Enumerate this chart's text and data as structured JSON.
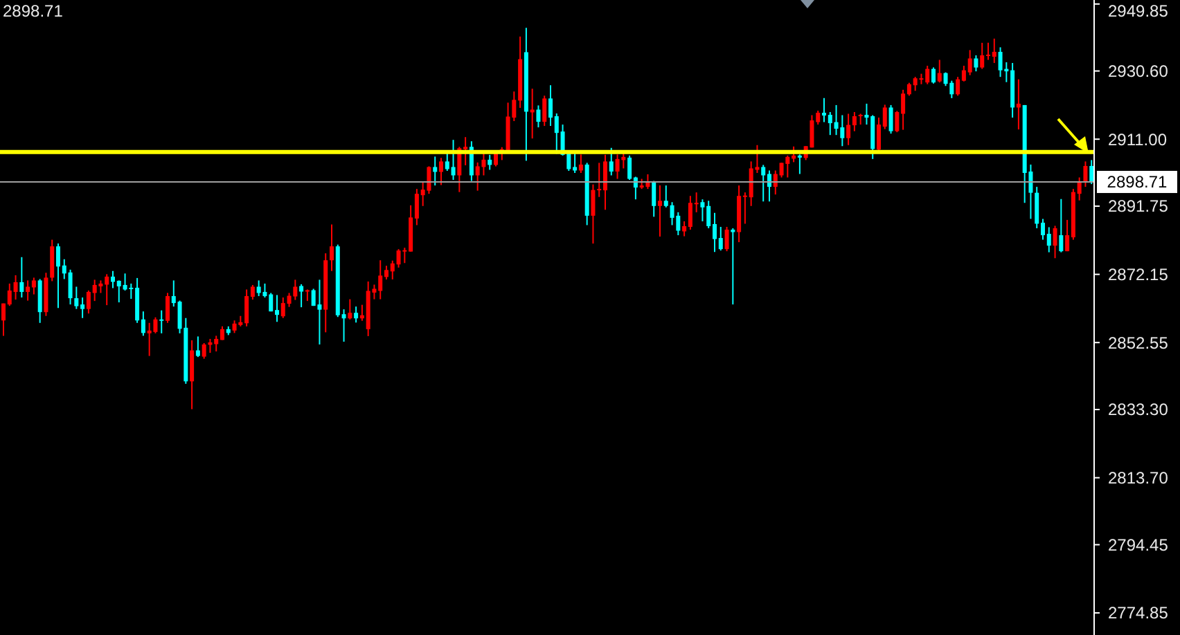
{
  "chart_data": {
    "type": "candlestick",
    "categories": [
      null,
      null,
      null,
      null,
      null,
      null,
      null,
      null,
      null,
      null,
      null,
      null,
      null,
      null,
      null,
      null,
      null,
      null,
      null,
      null,
      null,
      null,
      null,
      null,
      null,
      null,
      null,
      null,
      null,
      null,
      null,
      null,
      null,
      null,
      null,
      null,
      null,
      null,
      null,
      null,
      null,
      null,
      null,
      null,
      null,
      null,
      null,
      null,
      null,
      null,
      null,
      null,
      null,
      null,
      null,
      null,
      null,
      null,
      null,
      null,
      null,
      null,
      null,
      null,
      null,
      null,
      null,
      null,
      null,
      null,
      null,
      null,
      null,
      null,
      null,
      null,
      null,
      null,
      null,
      null,
      null,
      null,
      null,
      null,
      null,
      null,
      null,
      null,
      null,
      null,
      null,
      null,
      null,
      null,
      null,
      null,
      null,
      null,
      null,
      null,
      null,
      null,
      null,
      null,
      null,
      null,
      null,
      null,
      null,
      null,
      null,
      null,
      null,
      null,
      null,
      null,
      null,
      null,
      null,
      null,
      null,
      null,
      null,
      null,
      null,
      null,
      null,
      null,
      null,
      null,
      null,
      null,
      null,
      null,
      null,
      null,
      null,
      null,
      null,
      null,
      null,
      null,
      null,
      null,
      null,
      null,
      null,
      null,
      null,
      null,
      null,
      null,
      null,
      null,
      null,
      null,
      null,
      null,
      null,
      null,
      null,
      null,
      null,
      null,
      null,
      null,
      null,
      null,
      null,
      null,
      null,
      null,
      null,
      null,
      null,
      null,
      null,
      null,
      null,
      null
    ],
    "ohlc": [
      [
        2858.9,
        2863.8,
        2854.5,
        2863.8
      ],
      [
        2863.5,
        2869.5,
        2863.1,
        2867.5
      ],
      [
        2867.1,
        2871.9,
        2864.9,
        2869.9
      ],
      [
        2869.9,
        2877.1,
        2865.5,
        2867.1
      ],
      [
        2867.1,
        2870.4,
        2864.6,
        2868.6
      ],
      [
        2868.4,
        2871.2,
        2866.4,
        2870.4
      ],
      [
        2870.4,
        2870.8,
        2858.2,
        2861.3
      ],
      [
        2861.3,
        2872.6,
        2860.2,
        2871.2
      ],
      [
        2871.2,
        2882.1,
        2870.2,
        2880.2
      ],
      [
        2880.2,
        2881.0,
        2862.5,
        2874.4
      ],
      [
        2874.7,
        2876.5,
        2870.8,
        2872.4
      ],
      [
        2872.7,
        2873.5,
        2863.5,
        2865.3
      ],
      [
        2865.3,
        2868.6,
        2862.2,
        2863.0
      ],
      [
        2863.5,
        2865.5,
        2859.6,
        2862.2
      ],
      [
        2862.2,
        2867.5,
        2860.9,
        2867.1
      ],
      [
        2866.8,
        2870.6,
        2864.5,
        2869.1
      ],
      [
        2868.7,
        2870.4,
        2866.8,
        2869.5
      ],
      [
        2869.2,
        2872.2,
        2863.3,
        2871.5
      ],
      [
        2871.5,
        2873.1,
        2868.2,
        2870.0
      ],
      [
        2870.3,
        2870.4,
        2864.1,
        2868.7
      ],
      [
        2869.1,
        2872.4,
        2867.5,
        2867.8
      ],
      [
        2868.3,
        2869.5,
        2865.1,
        2868.0
      ],
      [
        2868.3,
        2871.1,
        2858.2,
        2858.9
      ],
      [
        2859.2,
        2861.5,
        2854.5,
        2855.3
      ],
      [
        2855.2,
        2858.2,
        2848.7,
        2856.0
      ],
      [
        2855.6,
        2859.8,
        2855.2,
        2859.2
      ],
      [
        2859.2,
        2861.8,
        2855.2,
        2858.8
      ],
      [
        2858.8,
        2866.8,
        2858.2,
        2865.9
      ],
      [
        2865.9,
        2870.4,
        2862.9,
        2863.9
      ],
      [
        2864.3,
        2864.6,
        2855.2,
        2856.5
      ],
      [
        2856.8,
        2859.6,
        2840.7,
        2841.4
      ],
      [
        2841.4,
        2853.2,
        2833.4,
        2850.3
      ],
      [
        2850.3,
        2854.3,
        2848.4,
        2848.7
      ],
      [
        2848.5,
        2852.4,
        2847.9,
        2852.0
      ],
      [
        2851.9,
        2853.6,
        2849.6,
        2852.6
      ],
      [
        2852.1,
        2854.5,
        2850.0,
        2853.6
      ],
      [
        2853.3,
        2857.2,
        2853.3,
        2856.4
      ],
      [
        2856.4,
        2857.2,
        2854.7,
        2855.3
      ],
      [
        2856.0,
        2858.9,
        2855.3,
        2858.0
      ],
      [
        2857.6,
        2860.2,
        2857.2,
        2858.4
      ],
      [
        2858.1,
        2867.8,
        2857.2,
        2865.9
      ],
      [
        2865.7,
        2869.1,
        2864.9,
        2868.6
      ],
      [
        2868.6,
        2870.4,
        2865.9,
        2866.8
      ],
      [
        2867.1,
        2869.5,
        2865.5,
        2865.9
      ],
      [
        2866.4,
        2866.8,
        2861.5,
        2861.5
      ],
      [
        2861.9,
        2866.2,
        2858.5,
        2860.5
      ],
      [
        2860.1,
        2865.5,
        2859.6,
        2863.9
      ],
      [
        2863.7,
        2866.8,
        2862.8,
        2866.0
      ],
      [
        2865.8,
        2870.6,
        2864.8,
        2868.6
      ],
      [
        2868.8,
        2869.3,
        2862.7,
        2867.2
      ],
      [
        2867.2,
        2867.8,
        2864.5,
        2867.6
      ],
      [
        2867.6,
        2868.0,
        2863.1,
        2863.1
      ],
      [
        2863.5,
        2870.6,
        2852.0,
        2862.0
      ],
      [
        2862.0,
        2878.2,
        2855.5,
        2876.2
      ],
      [
        2876.2,
        2886.5,
        2873.1,
        2880.2
      ],
      [
        2880.2,
        2880.7,
        2859.9,
        2860.4
      ],
      [
        2860.7,
        2862.1,
        2852.8,
        2859.5
      ],
      [
        2859.5,
        2865.0,
        2859.2,
        2861.1
      ],
      [
        2861.1,
        2862.9,
        2858.3,
        2859.5
      ],
      [
        2859.5,
        2863.4,
        2858.8,
        2860.4
      ],
      [
        2856.4,
        2870.1,
        2854.4,
        2867.4
      ],
      [
        2866.9,
        2869.2,
        2865.0,
        2868.0
      ],
      [
        2867.4,
        2876.2,
        2865.0,
        2871.8
      ],
      [
        2871.4,
        2874.6,
        2870.7,
        2873.4
      ],
      [
        2873.0,
        2876.1,
        2870.7,
        2875.3
      ],
      [
        2875.0,
        2879.4,
        2874.1,
        2879.0
      ],
      [
        2878.7,
        2879.8,
        2875.4,
        2879.1
      ],
      [
        2878.7,
        2892.0,
        2878.7,
        2888.5
      ],
      [
        2888.2,
        2896.7,
        2886.3,
        2895.3
      ],
      [
        2894.9,
        2898.9,
        2891.8,
        2896.5
      ],
      [
        2896.2,
        2903.2,
        2895.3,
        2903.0
      ],
      [
        2903.0,
        2906.0,
        2897.7,
        2901.6
      ],
      [
        2901.6,
        2905.6,
        2897.8,
        2904.6
      ],
      [
        2904.6,
        2906.9,
        2901.9,
        2902.4
      ],
      [
        2903.0,
        2910.8,
        2899.3,
        2900.6
      ],
      [
        2900.6,
        2908.8,
        2895.8,
        2908.4
      ],
      [
        2908.1,
        2911.6,
        2903.5,
        2908.8
      ],
      [
        2908.8,
        2910.4,
        2899.0,
        2900.6
      ],
      [
        2900.6,
        2904.3,
        2896.2,
        2903.2
      ],
      [
        2903.0,
        2906.9,
        2900.6,
        2905.1
      ],
      [
        2905.1,
        2906.5,
        2902.2,
        2903.6
      ],
      [
        2903.6,
        2907.7,
        2903.2,
        2907.2
      ],
      [
        2907.0,
        2908.7,
        2905.0,
        2908.1
      ],
      [
        2907.2,
        2921.5,
        2907.2,
        2917.5
      ],
      [
        2917.2,
        2924.7,
        2916.2,
        2922.3
      ],
      [
        2922.1,
        2940.5,
        2920.0,
        2934.0
      ],
      [
        2936.0,
        2943.0,
        2904.8,
        2918.9
      ],
      [
        2918.7,
        2925.5,
        2911.2,
        2919.5
      ],
      [
        2919.5,
        2920.7,
        2914.4,
        2916.0
      ],
      [
        2916.0,
        2923.5,
        2914.8,
        2922.7
      ],
      [
        2922.7,
        2926.5,
        2914.8,
        2917.2
      ],
      [
        2917.6,
        2918.4,
        2906.8,
        2912.8
      ],
      [
        2913.2,
        2915.2,
        2906.3,
        2906.5
      ],
      [
        2907.2,
        2907.2,
        2901.9,
        2902.4
      ],
      [
        2903.0,
        2906.9,
        2901.3,
        2902.0
      ],
      [
        2902.0,
        2906.6,
        2901.3,
        2903.7
      ],
      [
        2903.7,
        2904.2,
        2886.3,
        2889.0
      ],
      [
        2889.0,
        2898.0,
        2881.0,
        2896.4
      ],
      [
        2896.3,
        2904.2,
        2894.4,
        2896.7
      ],
      [
        2896.3,
        2906.5,
        2890.7,
        2904.6
      ],
      [
        2904.6,
        2908.5,
        2900.6,
        2901.7
      ],
      [
        2901.7,
        2906.6,
        2899.6,
        2905.3
      ],
      [
        2905.0,
        2906.9,
        2902.6,
        2905.9
      ],
      [
        2905.7,
        2906.3,
        2899.3,
        2899.6
      ],
      [
        2900.0,
        2900.2,
        2893.7,
        2897.1
      ],
      [
        2897.1,
        2899.6,
        2896.7,
        2897.7
      ],
      [
        2897.3,
        2900.9,
        2896.7,
        2898.6
      ],
      [
        2898.6,
        2899.0,
        2888.7,
        2891.8
      ],
      [
        2891.8,
        2897.7,
        2883.0,
        2893.3
      ],
      [
        2893.3,
        2897.7,
        2891.4,
        2891.8
      ],
      [
        2892.0,
        2892.9,
        2886.3,
        2888.4
      ],
      [
        2889.0,
        2890.0,
        2883.4,
        2884.7
      ],
      [
        2884.5,
        2887.4,
        2883.1,
        2886.0
      ],
      [
        2885.8,
        2894.7,
        2885.0,
        2892.7
      ],
      [
        2892.3,
        2895.7,
        2890.0,
        2892.7
      ],
      [
        2892.9,
        2893.7,
        2887.4,
        2891.4
      ],
      [
        2891.8,
        2893.3,
        2885.4,
        2886.0
      ],
      [
        2886.6,
        2889.8,
        2878.6,
        2882.3
      ],
      [
        2882.6,
        2885.8,
        2879.0,
        2879.4
      ],
      [
        2879.4,
        2885.8,
        2878.8,
        2885.0
      ],
      [
        2885.0,
        2885.4,
        2863.5,
        2884.3
      ],
      [
        2884.3,
        2897.7,
        2881.4,
        2894.7
      ],
      [
        2894.4,
        2895.7,
        2886.7,
        2894.8
      ],
      [
        2894.3,
        2904.6,
        2891.8,
        2902.6
      ],
      [
        2902.2,
        2909.3,
        2901.3,
        2903.0
      ],
      [
        2903.0,
        2903.6,
        2893.1,
        2900.6
      ],
      [
        2901.0,
        2902.0,
        2893.1,
        2897.3
      ],
      [
        2897.3,
        2902.0,
        2895.1,
        2901.0
      ],
      [
        2900.6,
        2904.2,
        2900.0,
        2904.2
      ],
      [
        2903.9,
        2906.3,
        2900.0,
        2905.9
      ],
      [
        2905.4,
        2908.9,
        2904.4,
        2906.3
      ],
      [
        2906.3,
        2906.6,
        2901.0,
        2905.7
      ],
      [
        2905.6,
        2909.0,
        2905.0,
        2909.0
      ],
      [
        2908.6,
        2917.9,
        2908.6,
        2916.4
      ],
      [
        2915.9,
        2919.2,
        2915.2,
        2918.6
      ],
      [
        2918.6,
        2922.8,
        2915.9,
        2917.8
      ],
      [
        2918.0,
        2918.8,
        2912.2,
        2915.6
      ],
      [
        2915.9,
        2920.8,
        2912.2,
        2914.0
      ],
      [
        2914.4,
        2917.9,
        2909.0,
        2911.3
      ],
      [
        2911.3,
        2918.3,
        2909.3,
        2915.1
      ],
      [
        2915.0,
        2918.8,
        2913.3,
        2917.6
      ],
      [
        2917.6,
        2918.3,
        2915.2,
        2918.0
      ],
      [
        2918.0,
        2921.2,
        2915.2,
        2917.2
      ],
      [
        2917.6,
        2917.9,
        2905.3,
        2908.2
      ],
      [
        2908.0,
        2917.2,
        2906.9,
        2915.2
      ],
      [
        2914.6,
        2920.9,
        2913.9,
        2920.1
      ],
      [
        2920.1,
        2920.8,
        2912.6,
        2913.3
      ],
      [
        2913.3,
        2919.1,
        2913.0,
        2918.8
      ],
      [
        2918.3,
        2925.2,
        2913.7,
        2924.1
      ],
      [
        2923.9,
        2927.2,
        2923.5,
        2926.8
      ],
      [
        2926.5,
        2928.9,
        2924.9,
        2928.5
      ],
      [
        2928.1,
        2929.8,
        2926.8,
        2928.5
      ],
      [
        2927.3,
        2932.1,
        2926.8,
        2931.2
      ],
      [
        2931.2,
        2931.6,
        2927.0,
        2927.3
      ],
      [
        2927.6,
        2933.8,
        2927.3,
        2930.0
      ],
      [
        2930.0,
        2930.2,
        2926.3,
        2926.9
      ],
      [
        2927.2,
        2927.8,
        2922.8,
        2923.9
      ],
      [
        2923.9,
        2928.9,
        2923.5,
        2928.2
      ],
      [
        2927.8,
        2932.1,
        2927.6,
        2930.8
      ],
      [
        2930.2,
        2936.6,
        2929.4,
        2934.2
      ],
      [
        2934.2,
        2935.1,
        2930.5,
        2931.6
      ],
      [
        2931.6,
        2938.7,
        2931.2,
        2935.1
      ],
      [
        2934.9,
        2938.7,
        2933.8,
        2935.3
      ],
      [
        2934.7,
        2939.9,
        2932.9,
        2936.1
      ],
      [
        2936.1,
        2937.4,
        2928.9,
        2930.8
      ],
      [
        2931.2,
        2933.1,
        2927.4,
        2930.5
      ],
      [
        2930.8,
        2932.9,
        2917.2,
        2920.1
      ],
      [
        2920.1,
        2928.2,
        2913.8,
        2921.2
      ],
      [
        2920.8,
        2920.8,
        2892.7,
        2901.3
      ],
      [
        2901.7,
        2903.7,
        2888.1,
        2895.6
      ],
      [
        2895.6,
        2897.3,
        2885.4,
        2886.7
      ],
      [
        2887.0,
        2888.1,
        2882.1,
        2883.4
      ],
      [
        2883.8,
        2885.7,
        2878.5,
        2880.4
      ],
      [
        2880.4,
        2886.1,
        2876.8,
        2885.4
      ],
      [
        2883.4,
        2893.8,
        2878.5,
        2878.8
      ],
      [
        2878.8,
        2887.8,
        2878.8,
        2883.4
      ],
      [
        2882.8,
        2896.7,
        2882.1,
        2895.8
      ],
      [
        2895.3,
        2900.0,
        2893.4,
        2898.9
      ],
      [
        2898.7,
        2904.6,
        2897.3,
        2903.3
      ],
      [
        2903.3,
        2905.0,
        2898.1,
        2898.7
      ]
    ],
    "colors": [
      "#ff0000",
      "#ff0000",
      "#ff0000",
      "#00ffff",
      "#ff0000",
      "#ff0000",
      "#00ffff",
      "#ff0000",
      "#ff0000",
      "#00ffff",
      "#00ffff",
      "#00ffff",
      "#00ffff",
      "#00ffff",
      "#ff0000",
      "#ff0000",
      "#ff0000",
      "#ff0000",
      "#00ffff",
      "#00ffff",
      "#00ffff",
      "#00ffff",
      "#00ffff",
      "#00ffff",
      "#ff0000",
      "#ff0000",
      "#00ffff",
      "#ff0000",
      "#00ffff",
      "#00ffff",
      "#00ffff",
      "#ff0000",
      "#00ffff",
      "#ff0000",
      "#ff0000",
      "#ff0000",
      "#ff0000",
      "#00ffff",
      "#ff0000",
      "#ff0000",
      "#ff0000",
      "#ff0000",
      "#00ffff",
      "#00ffff",
      "#00ffff",
      "#00ffff",
      "#ff0000",
      "#ff0000",
      "#ff0000",
      "#00ffff",
      "#ff0000",
      "#00ffff",
      "#00ffff",
      "#ff0000",
      "#ff0000",
      "#00ffff",
      "#00ffff",
      "#ff0000",
      "#00ffff",
      "#ff0000",
      "#ff0000",
      "#ff0000",
      "#ff0000",
      "#ff0000",
      "#ff0000",
      "#ff0000",
      "#ff0000",
      "#ff0000",
      "#ff0000",
      "#ff0000",
      "#ff0000",
      "#00ffff",
      "#ff0000",
      "#00ffff",
      "#00ffff",
      "#ff0000",
      "#ff0000",
      "#00ffff",
      "#ff0000",
      "#ff0000",
      "#00ffff",
      "#ff0000",
      "#ff0000",
      "#ff0000",
      "#ff0000",
      "#ff0000",
      "#00ffff",
      "#ff0000",
      "#00ffff",
      "#ff0000",
      "#00ffff",
      "#00ffff",
      "#00ffff",
      "#00ffff",
      "#00ffff",
      "#ff0000",
      "#00ffff",
      "#ff0000",
      "#ff0000",
      "#ff0000",
      "#00ffff",
      "#ff0000",
      "#ff0000",
      "#00ffff",
      "#00ffff",
      "#ff0000",
      "#ff0000",
      "#00ffff",
      "#ff0000",
      "#00ffff",
      "#00ffff",
      "#00ffff",
      "#ff0000",
      "#ff0000",
      "#ff0000",
      "#00ffff",
      "#00ffff",
      "#00ffff",
      "#00ffff",
      "#ff0000",
      "#00ffff",
      "#ff0000",
      "#ff0000",
      "#ff0000",
      "#ff0000",
      "#00ffff",
      "#00ffff",
      "#ff0000",
      "#ff0000",
      "#ff0000",
      "#ff0000",
      "#00ffff",
      "#ff0000",
      "#ff0000",
      "#ff0000",
      "#00ffff",
      "#00ffff",
      "#00ffff",
      "#00ffff",
      "#ff0000",
      "#ff0000",
      "#ff0000",
      "#00ffff",
      "#00ffff",
      "#ff0000",
      "#ff0000",
      "#00ffff",
      "#ff0000",
      "#ff0000",
      "#ff0000",
      "#ff0000",
      "#ff0000",
      "#ff0000",
      "#00ffff",
      "#ff0000",
      "#00ffff",
      "#00ffff",
      "#ff0000",
      "#ff0000",
      "#ff0000",
      "#00ffff",
      "#ff0000",
      "#ff0000",
      "#ff0000",
      "#00ffff",
      "#00ffff",
      "#00ffff",
      "#ff0000",
      "#00ffff",
      "#00ffff",
      "#00ffff",
      "#00ffff",
      "#00ffff",
      "#ff0000",
      "#00ffff",
      "#ff0000",
      "#ff0000",
      "#ff0000",
      "#ff0000",
      "#00ffff"
    ],
    "ylim": [
      2768.5,
      2951.0
    ],
    "yticks": [
      2949.85,
      {
        "value": 2930.6,
        "label": "2930.60"
      },
      {
        "value": 2911,
        "label": "2911.00"
      },
      2891.75,
      2872.15,
      2852.55,
      {
        "value": 2833.3,
        "label": "2833.30"
      },
      {
        "value": 2813.7,
        "label": "2813.70"
      },
      2794.45,
      2774.85
    ],
    "ref_lines": [
      {
        "axis": "y",
        "value": 2907.3,
        "color": "#ffff00"
      },
      {
        "axis": "y",
        "value": 2898.71,
        "label": "2898.71",
        "color": "#a0a0a0"
      }
    ],
    "annotations": [
      "2898.71"
    ],
    "tick_labels": "y"
  }
}
